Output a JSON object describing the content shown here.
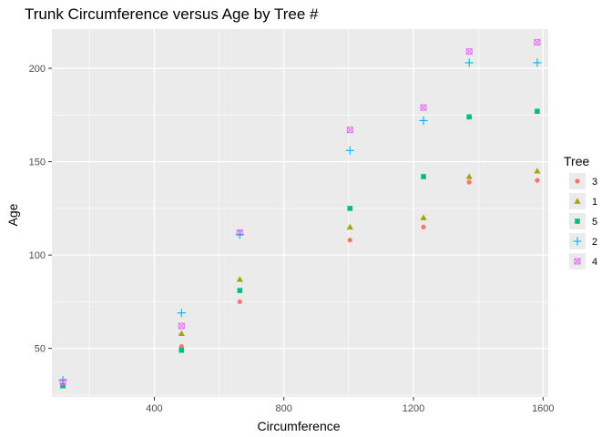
{
  "chart_data": {
    "type": "scatter",
    "title": "Trunk Circumference versus Age by Tree #",
    "xlabel": "Circumference",
    "ylabel": "Age",
    "xlim": [
      84,
      1616
    ],
    "ylim": [
      24,
      221
    ],
    "xticks": [
      400,
      800,
      1200,
      1600
    ],
    "yticks": [
      50,
      100,
      150,
      200
    ],
    "grid": true,
    "background": "#ebebeb",
    "legend": {
      "title": "Tree",
      "placement": "right",
      "entries": [
        "3",
        "1",
        "5",
        "2",
        "4"
      ]
    },
    "series": [
      {
        "name": "3",
        "color": "#f8766d",
        "shape": "circle",
        "points": [
          [
            118,
            30
          ],
          [
            484,
            51
          ],
          [
            664,
            75
          ],
          [
            1004,
            108
          ],
          [
            1231,
            115
          ],
          [
            1372,
            139
          ],
          [
            1582,
            140
          ]
        ]
      },
      {
        "name": "1",
        "color": "#a3a500",
        "shape": "triangle",
        "points": [
          [
            118,
            30
          ],
          [
            484,
            58
          ],
          [
            664,
            87
          ],
          [
            1004,
            115
          ],
          [
            1231,
            120
          ],
          [
            1372,
            142
          ],
          [
            1582,
            145
          ]
        ]
      },
      {
        "name": "5",
        "color": "#00bf7d",
        "shape": "square",
        "points": [
          [
            118,
            30
          ],
          [
            484,
            49
          ],
          [
            664,
            81
          ],
          [
            1004,
            125
          ],
          [
            1231,
            142
          ],
          [
            1372,
            174
          ],
          [
            1582,
            177
          ]
        ]
      },
      {
        "name": "2",
        "color": "#00b0f6",
        "shape": "plus",
        "points": [
          [
            118,
            33
          ],
          [
            484,
            69
          ],
          [
            664,
            111
          ],
          [
            1004,
            156
          ],
          [
            1231,
            172
          ],
          [
            1372,
            203
          ],
          [
            1582,
            203
          ]
        ]
      },
      {
        "name": "4",
        "color": "#e76bf3",
        "shape": "square-cross",
        "points": [
          [
            118,
            32
          ],
          [
            484,
            62
          ],
          [
            664,
            112
          ],
          [
            1004,
            167
          ],
          [
            1231,
            179
          ],
          [
            1372,
            209
          ],
          [
            1582,
            214
          ]
        ]
      }
    ]
  }
}
